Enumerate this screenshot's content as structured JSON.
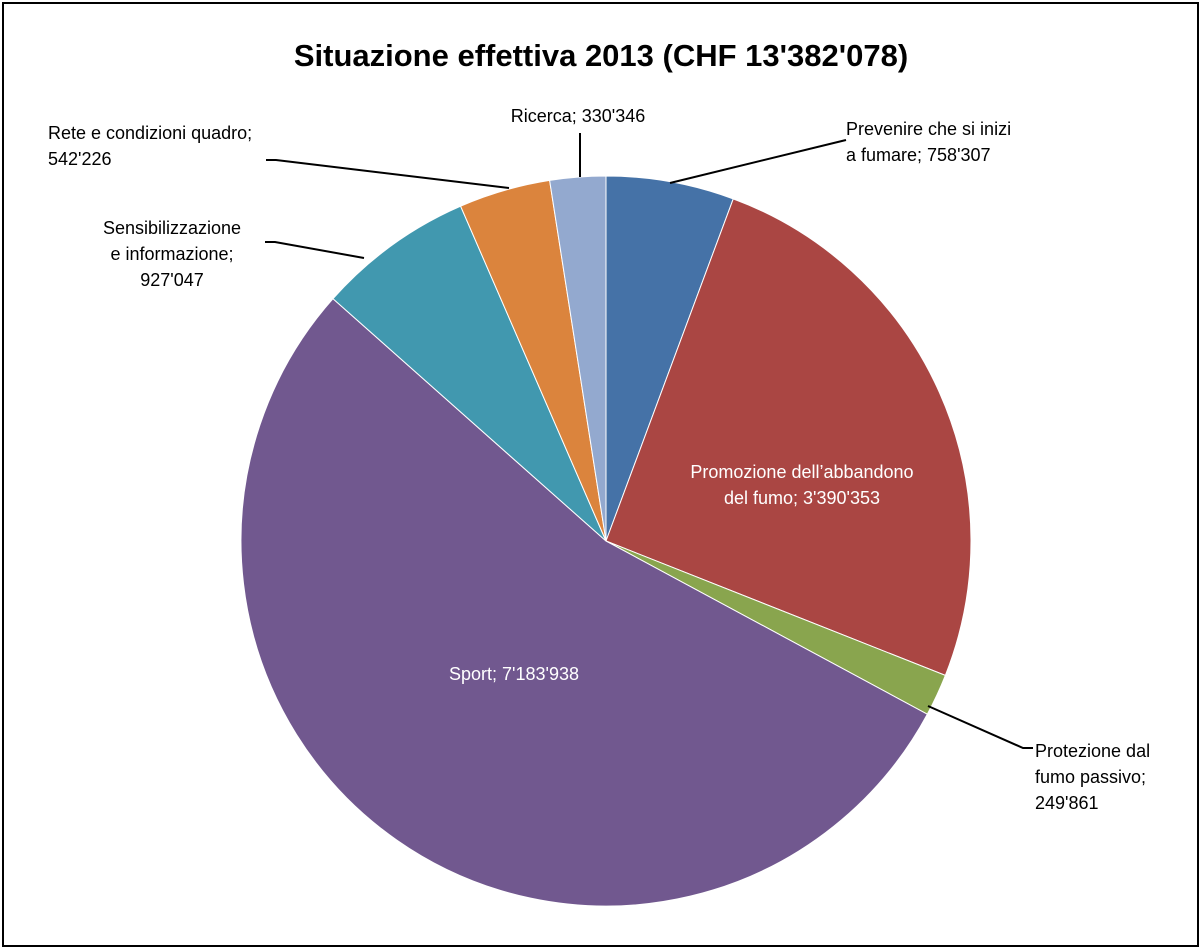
{
  "chart_data": {
    "type": "pie",
    "title": "Situazione effettiva 2013 (CHF 13'382'078)",
    "slices": [
      {
        "name": "Prevenire che si inizi a fumare",
        "value": 758307,
        "label_lines": [
          "Prevenire che si inizi",
          "a fumare; 758'307"
        ],
        "color": "#4572A7"
      },
      {
        "name": "Promozione dell’abbandono del fumo",
        "value": 3390353,
        "label_lines": [
          "Promozione dell’abbandono",
          "del fumo; 3'390'353"
        ],
        "color": "#AA4643"
      },
      {
        "name": "Protezione dal fumo passivo",
        "value": 249861,
        "label_lines": [
          "Protezione dal",
          "fumo passivo;",
          "249'861"
        ],
        "color": "#89A54E"
      },
      {
        "name": "Sport",
        "value": 7183938,
        "label_lines": [
          "Sport; 7'183'938"
        ],
        "color": "#71588F"
      },
      {
        "name": "Sensibilizzazione e informazione",
        "value": 927047,
        "label_lines": [
          "Sensibilizzazione",
          "e informazione;",
          "927'047"
        ],
        "color": "#4198AF"
      },
      {
        "name": "Rete e condizioni quadro",
        "value": 542226,
        "label_lines": [
          "Rete e condizioni quadro;",
          "542'226"
        ],
        "color": "#DB843D"
      },
      {
        "name": "Ricerca",
        "value": 330346,
        "label_lines": [
          "Ricerca; 330'346"
        ],
        "color": "#93A9CF"
      }
    ],
    "start_angle_deg": 0,
    "direction": "clockwise",
    "legend": "none"
  }
}
